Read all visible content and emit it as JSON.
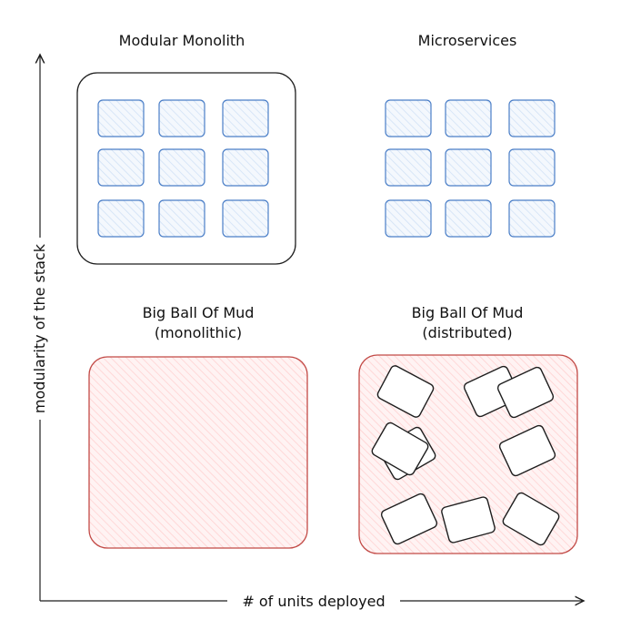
{
  "quadrants": {
    "modular_monolith": {
      "title": "Modular Monolith"
    },
    "microservices": {
      "title": "Microservices"
    },
    "mud_monolithic": {
      "title_line1": "Big Ball Of Mud",
      "title_line2": "(monolithic)"
    },
    "mud_distributed": {
      "title_line1": "Big Ball Of Mud",
      "title_line2": "(distributed)"
    }
  },
  "axes": {
    "x_label": "# of units deployed",
    "y_label": "modularity of the stack"
  },
  "colors": {
    "module_stroke": "#4a7ec7",
    "module_fill": "#e7f0fb",
    "mud_stroke": "#c24a46",
    "mud_fill": "#ffe3e3",
    "ink": "#1e1e1e"
  }
}
